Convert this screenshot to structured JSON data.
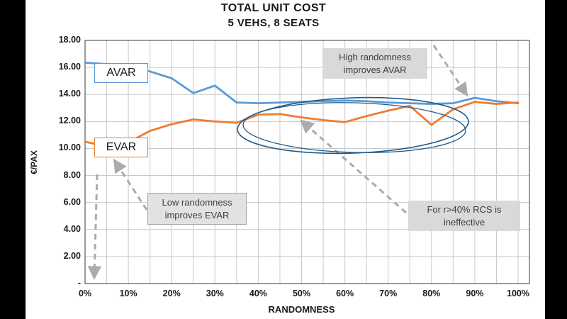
{
  "window": {
    "letterbox_color": "#000000",
    "background": "#FFFFFF"
  },
  "chart_data": {
    "type": "line",
    "title": "TOTAL UNIT COST",
    "subtitle": "5 VEHS, 8 SEATS",
    "xlabel": "RANDOMNESS",
    "ylabel": "€/PAX",
    "ylim": [
      0,
      18
    ],
    "grid": true,
    "x": [
      0,
      5,
      10,
      15,
      20,
      25,
      30,
      35,
      40,
      45,
      50,
      55,
      60,
      65,
      70,
      75,
      80,
      85,
      90,
      95,
      100
    ],
    "x_tick_labels": [
      "0%",
      "10%",
      "20%",
      "30%",
      "40%",
      "50%",
      "60%",
      "70%",
      "80%",
      "90%",
      "100%"
    ],
    "y_tick_values": [
      18,
      16,
      14,
      12,
      10,
      8,
      6,
      4,
      2,
      0
    ],
    "y_tick_labels": [
      "18.00",
      "16.00",
      "14.00",
      "12.00",
      "10.00",
      "8.00",
      "6.00",
      "4.00",
      "2.00",
      "-"
    ],
    "series": [
      {
        "name": "AVAR",
        "color": "#5B9BD5",
        "values": [
          16.35,
          16.25,
          16.1,
          15.7,
          15.2,
          14.1,
          14.65,
          13.4,
          13.35,
          13.4,
          13.45,
          13.5,
          13.55,
          13.5,
          13.4,
          13.35,
          13.3,
          13.35,
          13.75,
          13.5,
          13.35
        ]
      },
      {
        "name": "EVAR",
        "color": "#ED7D31",
        "values": [
          10.5,
          10.15,
          10.45,
          11.3,
          11.8,
          12.15,
          12.0,
          11.9,
          12.5,
          12.55,
          12.3,
          12.1,
          11.95,
          12.4,
          12.8,
          13.15,
          11.75,
          12.9,
          13.45,
          13.3,
          13.4
        ]
      }
    ]
  },
  "annotations": {
    "high_randomness": "High randomness\nimproves AVAR",
    "low_randomness": "Low randomness\nimproves EVAR",
    "rcs": "For r>40% RCS is\nineffective",
    "highlight_ellipse_color": "#1F5C8B",
    "arrow_color": "#ABABAB"
  }
}
